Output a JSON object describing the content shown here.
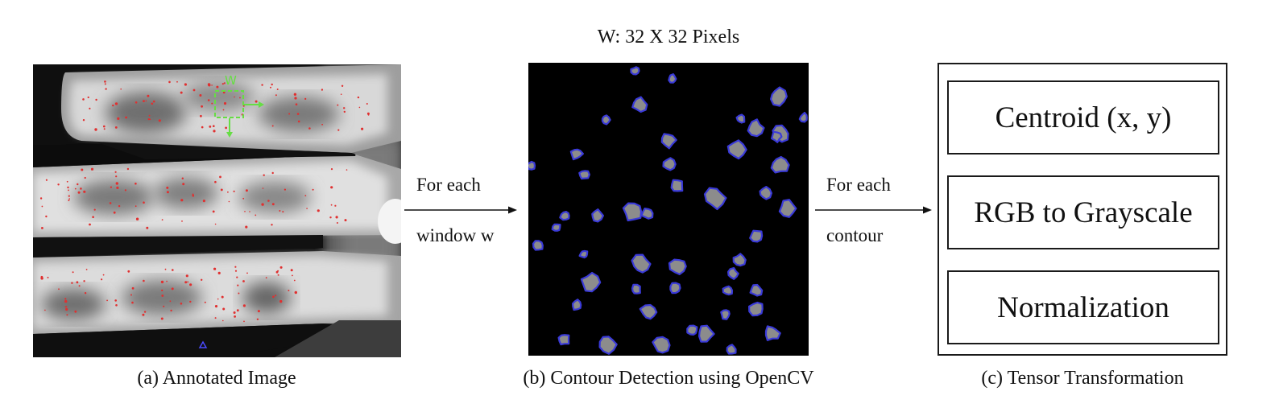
{
  "window_label": "W: 32 X 32 Pixels",
  "arrows": [
    {
      "line1": "For each",
      "line2": "window w"
    },
    {
      "line1": "For each",
      "line2": "contour"
    }
  ],
  "panel_a": {
    "caption": "(a) Annotated Image",
    "window_marker": "W"
  },
  "panel_b": {
    "caption": "(b) Contour Detection using OpenCV"
  },
  "panel_c": {
    "caption": "(c) Tensor Transformation",
    "steps": [
      "Centroid (x, y)",
      "RGB to Grayscale",
      "Normalization"
    ]
  },
  "colors": {
    "annotation_dots": "#e03030",
    "window_box": "#66dd44",
    "contour_outline": "#3a3ad8",
    "blob_fill": "#8c8c8c"
  }
}
